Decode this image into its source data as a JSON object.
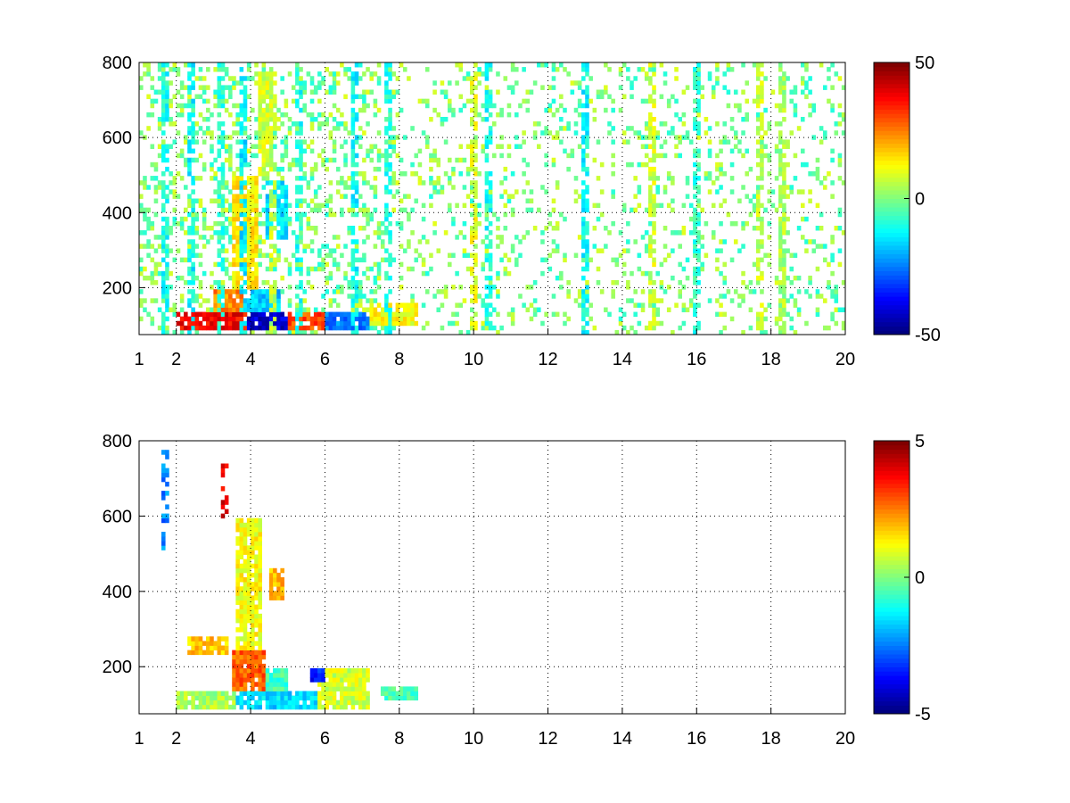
{
  "figure": {
    "background": "#ffffff"
  },
  "chart_data": [
    {
      "type": "heatmap",
      "title": "",
      "xlabel": "",
      "ylabel": "",
      "xlim": [
        1,
        20
      ],
      "ylim": [
        75,
        800
      ],
      "x_ticks": [
        "1",
        "2",
        "4",
        "6",
        "8",
        "10",
        "12",
        "14",
        "16",
        "18",
        "20"
      ],
      "y_ticks": [
        "200",
        "400",
        "600",
        "800"
      ],
      "grid": true,
      "colormap": "jet",
      "colorbar": {
        "min": -50,
        "max": 50,
        "ticks": [
          "50",
          "0",
          "-50"
        ]
      },
      "description_hot_region": {
        "x_range": [
          1.8,
          8.5
        ],
        "y_range": [
          75,
          200
        ]
      },
      "regions": [
        {
          "x": [
            2.0,
            4.0
          ],
          "y": [
            90,
            140
          ],
          "value": 38
        },
        {
          "x": [
            3.0,
            3.9
          ],
          "y": [
            140,
            200
          ],
          "value": 24
        },
        {
          "x": [
            3.9,
            5.0
          ],
          "y": [
            90,
            130
          ],
          "value": -42
        },
        {
          "x": [
            3.9,
            4.8
          ],
          "y": [
            130,
            200
          ],
          "value": -18
        },
        {
          "x": [
            5.0,
            6.0
          ],
          "y": [
            90,
            140
          ],
          "value": 30
        },
        {
          "x": [
            6.0,
            7.2
          ],
          "y": [
            90,
            140
          ],
          "value": -25
        },
        {
          "x": [
            7.2,
            8.5
          ],
          "y": [
            100,
            160
          ],
          "value": 12
        },
        {
          "x": [
            3.5,
            4.2
          ],
          "y": [
            200,
            500
          ],
          "value": 14
        },
        {
          "x": [
            4.4,
            5.0
          ],
          "y": [
            330,
            480
          ],
          "value": -15
        },
        {
          "x": [
            4.2,
            4.6
          ],
          "y": [
            500,
            780
          ],
          "value": 8
        }
      ],
      "stripes": [
        {
          "x": 1.7,
          "value": -10
        },
        {
          "x": 2.4,
          "value": -12
        },
        {
          "x": 3.2,
          "value": -8
        },
        {
          "x": 3.8,
          "value": -14
        },
        {
          "x": 4.6,
          "value": 6
        },
        {
          "x": 5.3,
          "value": -10
        },
        {
          "x": 6.8,
          "value": -12
        },
        {
          "x": 7.7,
          "value": -9
        },
        {
          "x": 10.0,
          "value": 10
        },
        {
          "x": 10.4,
          "value": -10
        },
        {
          "x": 13.0,
          "value": -12
        },
        {
          "x": 14.8,
          "value": 8
        },
        {
          "x": 16.0,
          "value": -8
        },
        {
          "x": 17.7,
          "value": 6
        },
        {
          "x": 18.3,
          "value": 4
        }
      ],
      "sparsity": 0.72
    },
    {
      "type": "heatmap",
      "title": "",
      "xlabel": "",
      "ylabel": "",
      "xlim": [
        1,
        20
      ],
      "ylim": [
        75,
        800
      ],
      "x_ticks": [
        "1",
        "2",
        "4",
        "6",
        "8",
        "10",
        "12",
        "14",
        "16",
        "18",
        "20"
      ],
      "y_ticks": [
        "200",
        "400",
        "600",
        "800"
      ],
      "grid": true,
      "colormap": "jet",
      "colorbar": {
        "min": -5,
        "max": 5,
        "ticks": [
          "5",
          "0",
          "-5"
        ]
      },
      "regions": [
        {
          "x": [
            2.0,
            3.6
          ],
          "y": [
            90,
            130
          ],
          "value": 0.4
        },
        {
          "x": [
            3.6,
            5.8
          ],
          "y": [
            90,
            130
          ],
          "value": -1.6
        },
        {
          "x": [
            3.5,
            4.4
          ],
          "y": [
            130,
            250
          ],
          "value": 2.8
        },
        {
          "x": [
            4.4,
            5.0
          ],
          "y": [
            130,
            200
          ],
          "value": -0.6
        },
        {
          "x": [
            5.8,
            7.2
          ],
          "y": [
            90,
            200
          ],
          "value": 0.8
        },
        {
          "x": [
            7.5,
            8.5
          ],
          "y": [
            110,
            150
          ],
          "value": -0.5
        },
        {
          "x": [
            3.6,
            4.3
          ],
          "y": [
            250,
            600
          ],
          "value": 1.2
        },
        {
          "x": [
            4.5,
            4.9
          ],
          "y": [
            380,
            460
          ],
          "value": 2.0
        },
        {
          "x": [
            2.3,
            3.4
          ],
          "y": [
            230,
            280
          ],
          "value": 1.8
        },
        {
          "x": [
            5.6,
            6.0
          ],
          "y": [
            160,
            200
          ],
          "value": -3.5
        }
      ],
      "stripes": [
        {
          "x": 1.7,
          "y": [
            510,
            780
          ],
          "value": -2.5
        },
        {
          "x": 3.3,
          "y": [
            600,
            740
          ],
          "value": 4.0
        }
      ],
      "sparsity": 0.55
    }
  ]
}
